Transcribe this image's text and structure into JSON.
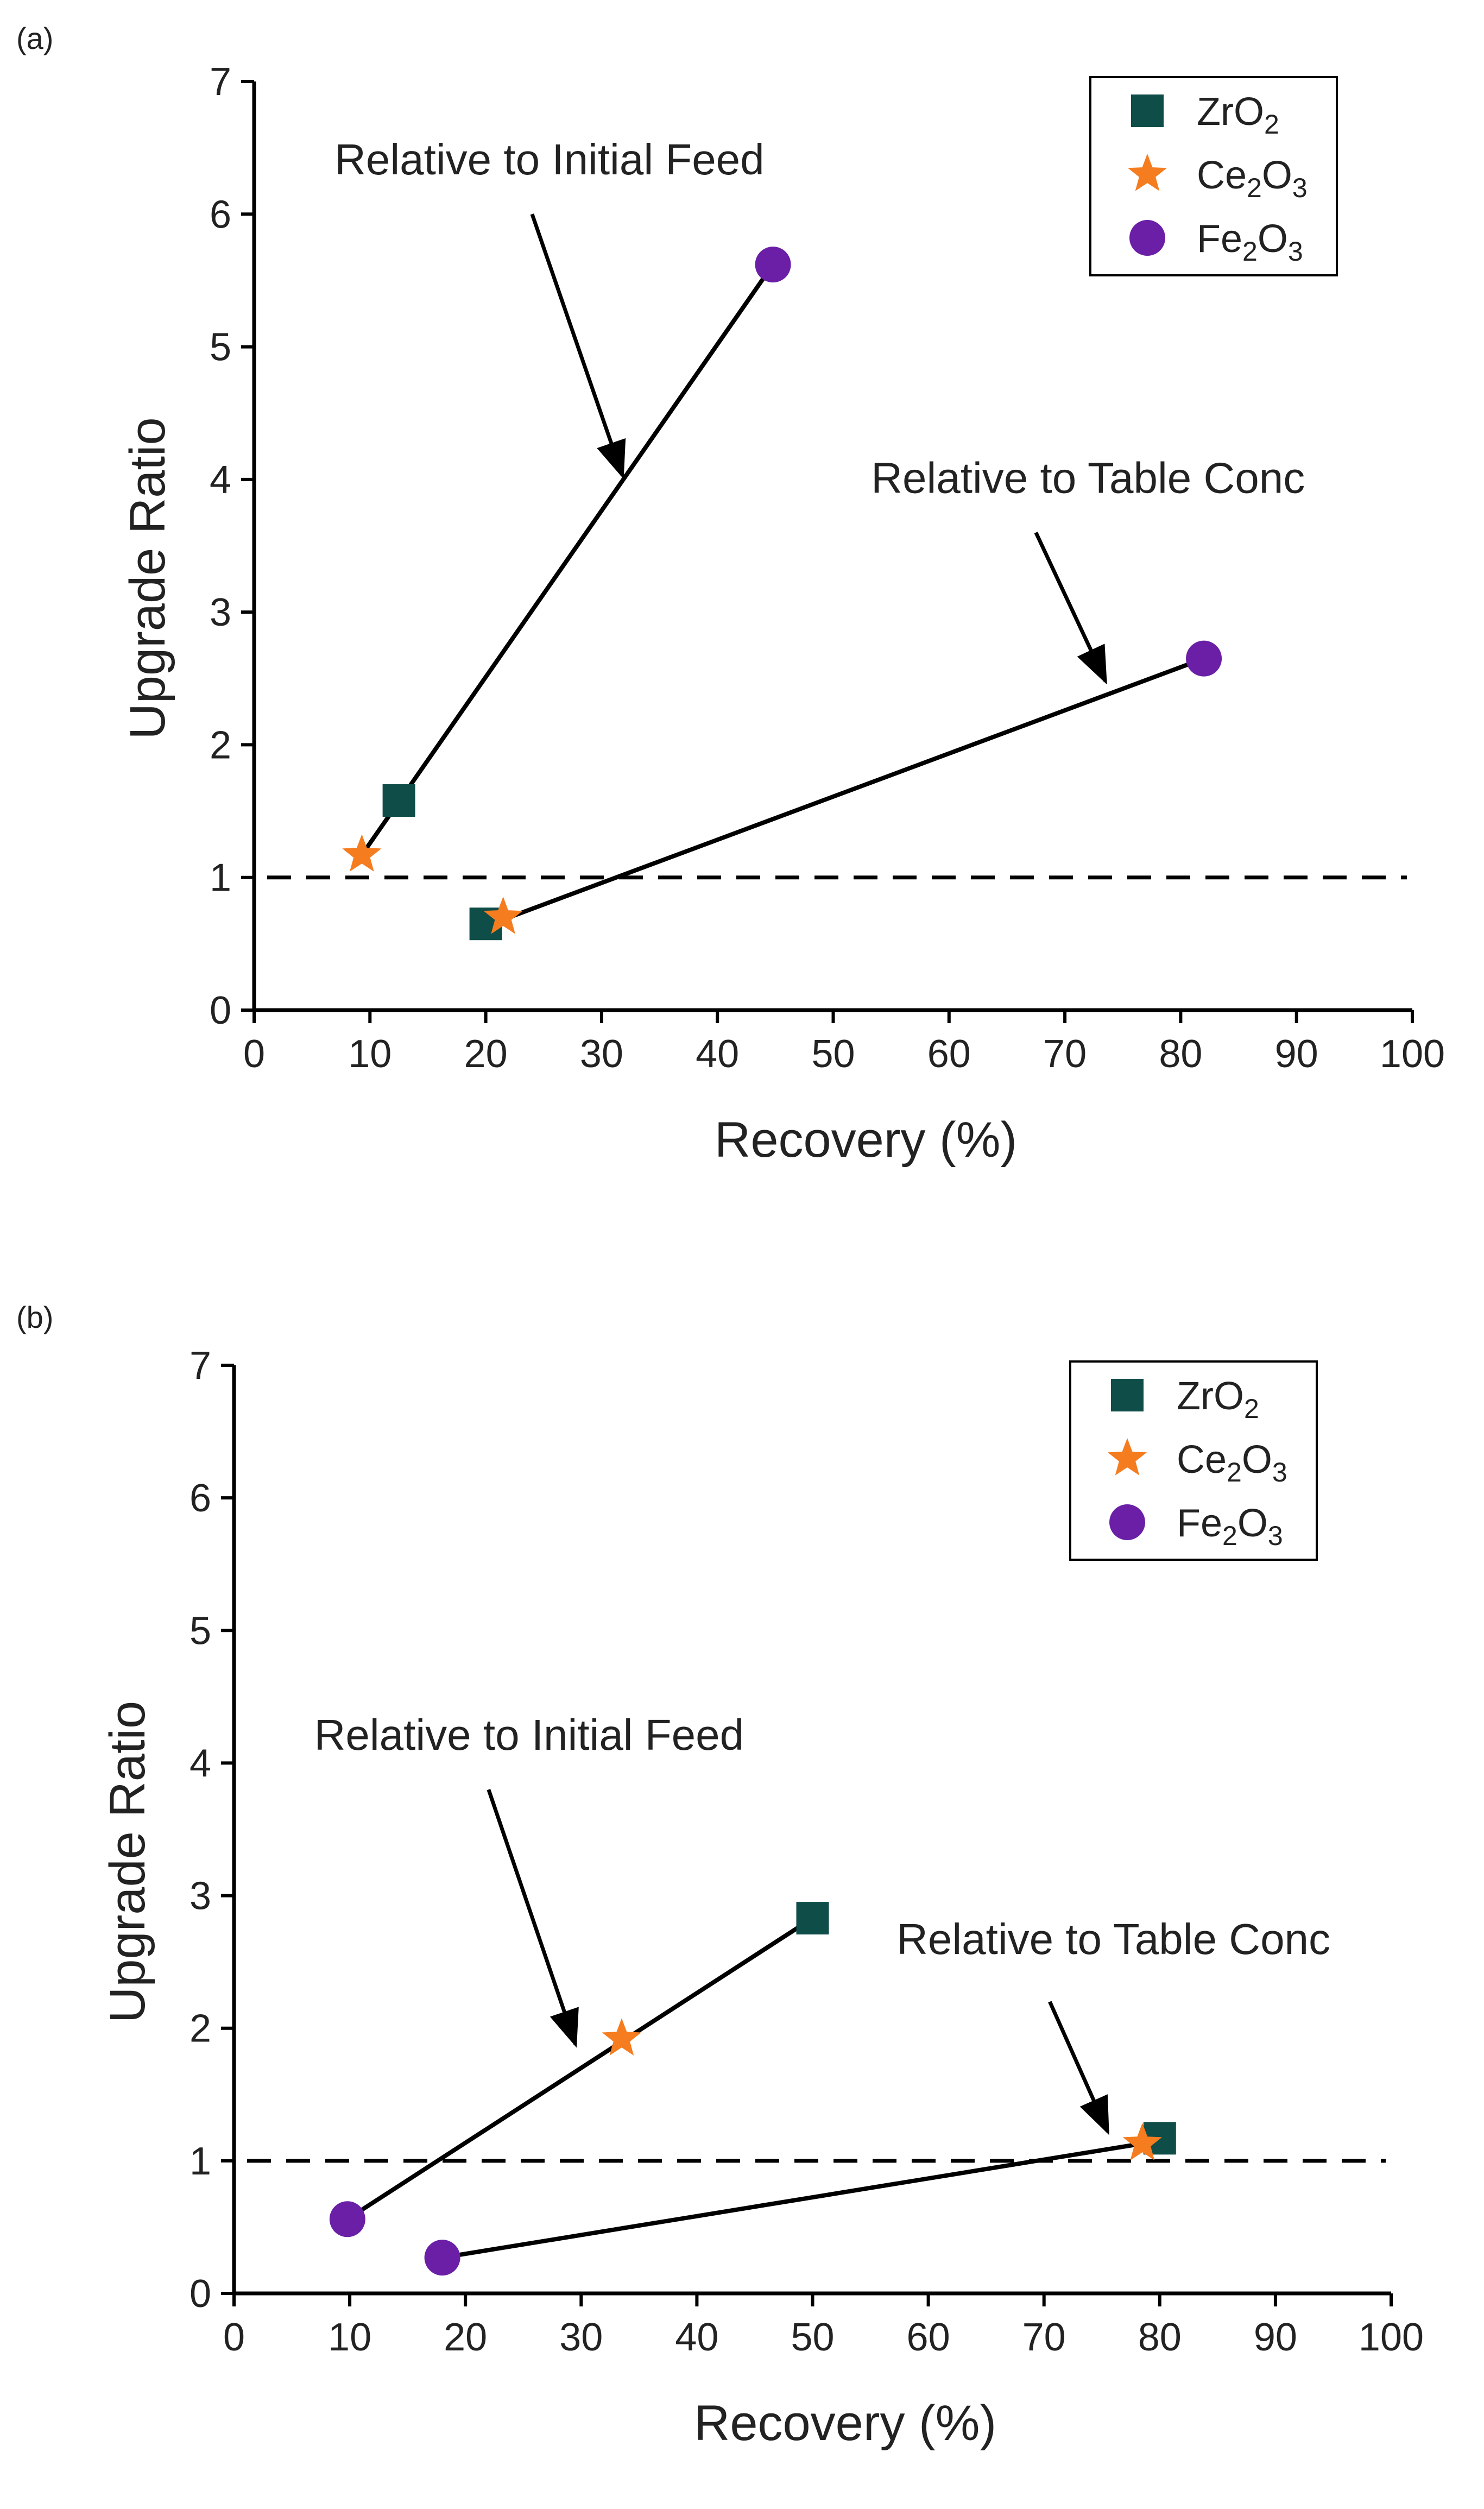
{
  "colors": {
    "zro2": "#0f4d48",
    "ce2o3": "#f57c1f",
    "fe2o3": "#6a1fa6",
    "line": "#000000",
    "text": "#222222"
  },
  "chart_data": [
    {
      "type": "scatter",
      "panel_label": "(a)",
      "xlabel": "Recovery (%)",
      "ylabel": "Upgrade Ratio",
      "xlim": [
        0,
        100
      ],
      "ylim": [
        0,
        7
      ],
      "xticks": [
        0,
        10,
        20,
        30,
        40,
        50,
        60,
        70,
        80,
        90,
        100
      ],
      "yticks": [
        0,
        1,
        2,
        3,
        4,
        5,
        6,
        7
      ],
      "reference_line": {
        "y": 1,
        "style": "dashed"
      },
      "legend": {
        "position": "top-right",
        "entries": [
          {
            "series": "ZrO2",
            "base": "ZrO",
            "sub1": "2",
            "mid": "",
            "sub2": ""
          },
          {
            "series": "Ce2O3",
            "base": "Ce",
            "sub1": "2",
            "mid": "O",
            "sub2": "3"
          },
          {
            "series": "Fe2O3",
            "base": "Fe",
            "sub1": "2",
            "mid": "O",
            "sub2": "3"
          }
        ]
      },
      "series": [
        {
          "name": "ZrO2",
          "marker": "square",
          "points": [
            [
              12.5,
              1.58
            ],
            [
              20,
              0.65
            ]
          ]
        },
        {
          "name": "Ce2O3",
          "marker": "star",
          "points": [
            [
              9.3,
              1.17
            ],
            [
              21.5,
              0.7
            ]
          ]
        },
        {
          "name": "Fe2O3",
          "marker": "circle",
          "points": [
            [
              44.8,
              5.62
            ],
            [
              82,
              2.65
            ]
          ]
        }
      ],
      "lines": [
        {
          "name": "initial-feed-line",
          "from": [
            9.3,
            1.17
          ],
          "to": [
            44.8,
            5.62
          ]
        },
        {
          "name": "table-conc-line",
          "from": [
            20.5,
            0.65
          ],
          "to": [
            82,
            2.65
          ]
        }
      ],
      "annotations": [
        {
          "name": "initial-feed",
          "text": "Relative to Initial Feed",
          "text_at": [
            25.5,
            6.3
          ],
          "arrow_from": [
            24,
            6.0
          ],
          "arrow_to": [
            31.8,
            4.03
          ]
        },
        {
          "name": "table-conc",
          "text": "Relative to Table Conc",
          "text_at": [
            72,
            3.9
          ],
          "arrow_from": [
            67.5,
            3.6
          ],
          "arrow_to": [
            73.5,
            2.48
          ]
        }
      ]
    },
    {
      "type": "scatter",
      "panel_label": "(b)",
      "xlabel": "Recovery (%)",
      "ylabel": "Upgrade Ratio",
      "xlim": [
        0,
        100
      ],
      "ylim": [
        0,
        7
      ],
      "xticks": [
        0,
        10,
        20,
        30,
        40,
        50,
        60,
        70,
        80,
        90,
        100
      ],
      "yticks": [
        0,
        1,
        2,
        3,
        4,
        5,
        6,
        7
      ],
      "reference_line": {
        "y": 1,
        "style": "dashed"
      },
      "legend": {
        "position": "top-right",
        "entries": [
          {
            "series": "ZrO2",
            "base": "ZrO",
            "sub1": "2",
            "mid": "",
            "sub2": ""
          },
          {
            "series": "Ce2O3",
            "base": "Ce",
            "sub1": "2",
            "mid": "O",
            "sub2": "3"
          },
          {
            "series": "Fe2O3",
            "base": "Fe",
            "sub1": "2",
            "mid": "O",
            "sub2": "3"
          }
        ]
      },
      "series": [
        {
          "name": "ZrO2",
          "marker": "square",
          "points": [
            [
              50,
              2.83
            ],
            [
              80,
              1.17
            ]
          ]
        },
        {
          "name": "Ce2O3",
          "marker": "star",
          "points": [
            [
              33.5,
              1.92
            ],
            [
              78.5,
              1.13
            ]
          ]
        },
        {
          "name": "Fe2O3",
          "marker": "circle",
          "points": [
            [
              9.8,
              0.56
            ],
            [
              18,
              0.27
            ]
          ]
        }
      ],
      "lines": [
        {
          "name": "initial-feed-line",
          "from": [
            9.8,
            0.56
          ],
          "to": [
            50,
            2.83
          ]
        },
        {
          "name": "table-conc-line",
          "from": [
            18,
            0.27
          ],
          "to": [
            78.5,
            1.13
          ]
        }
      ],
      "annotations": [
        {
          "name": "initial-feed",
          "text": "Relative to Initial Feed",
          "text_at": [
            25.5,
            4.1
          ],
          "arrow_from": [
            22,
            3.8
          ],
          "arrow_to": [
            29.5,
            1.88
          ]
        },
        {
          "name": "table-conc",
          "text": "Relative to Table Conc",
          "text_at": [
            76,
            2.56
          ],
          "arrow_from": [
            70.5,
            2.2
          ],
          "arrow_to": [
            75.5,
            1.22
          ]
        }
      ]
    }
  ]
}
